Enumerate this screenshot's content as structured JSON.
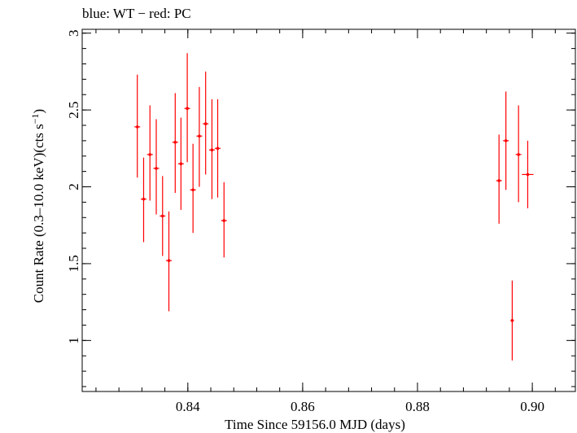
{
  "chart_data": {
    "type": "scatter",
    "title": "blue: WT − red: PC",
    "xlabel": "Time Since 59156.0 MJD (days)",
    "ylabel_main": "Count Rate (0.3–10.0 keV)(cts s",
    "ylabel_sup": "−1",
    "ylabel_close": ")",
    "xlim": [
      0.8216,
      0.9075
    ],
    "ylim": [
      0.668,
      3.025
    ],
    "xticks": [
      {
        "value": 0.84,
        "label": "0.84"
      },
      {
        "value": 0.86,
        "label": "0.86"
      },
      {
        "value": 0.88,
        "label": "0.88"
      },
      {
        "value": 0.9,
        "label": "0.90"
      }
    ],
    "yticks": [
      {
        "value": 1.0,
        "label": "1"
      },
      {
        "value": 1.5,
        "label": "1.5"
      },
      {
        "value": 2.0,
        "label": "2"
      },
      {
        "value": 2.5,
        "label": "2.5"
      },
      {
        "value": 3.0,
        "label": "3"
      }
    ],
    "x_minor_step": 0.004,
    "y_minor_step": 0.1,
    "grid": false,
    "series": [
      {
        "color": "#ff0000",
        "points": [
          {
            "x": 0.8312,
            "xerr": 0.0005,
            "y": 2.39,
            "ylo": 2.06,
            "yhi": 2.73
          },
          {
            "x": 0.8323,
            "xerr": 0.0005,
            "y": 1.92,
            "ylo": 1.64,
            "yhi": 2.19
          },
          {
            "x": 0.8334,
            "xerr": 0.0005,
            "y": 2.21,
            "ylo": 1.91,
            "yhi": 2.53
          },
          {
            "x": 0.8345,
            "xerr": 0.0005,
            "y": 2.12,
            "ylo": 1.82,
            "yhi": 2.44
          },
          {
            "x": 0.8356,
            "xerr": 0.0005,
            "y": 1.81,
            "ylo": 1.55,
            "yhi": 2.07
          },
          {
            "x": 0.8367,
            "xerr": 0.0005,
            "y": 1.52,
            "ylo": 1.19,
            "yhi": 1.84
          },
          {
            "x": 0.8378,
            "xerr": 0.0005,
            "y": 2.29,
            "ylo": 1.96,
            "yhi": 2.61
          },
          {
            "x": 0.8388,
            "xerr": 0.0005,
            "y": 2.15,
            "ylo": 1.85,
            "yhi": 2.45
          },
          {
            "x": 0.8399,
            "xerr": 0.0005,
            "y": 2.51,
            "ylo": 2.16,
            "yhi": 2.87
          },
          {
            "x": 0.8409,
            "xerr": 0.0005,
            "y": 1.98,
            "ylo": 1.7,
            "yhi": 2.28
          },
          {
            "x": 0.842,
            "xerr": 0.0005,
            "y": 2.33,
            "ylo": 2.0,
            "yhi": 2.65
          },
          {
            "x": 0.8431,
            "xerr": 0.0005,
            "y": 2.41,
            "ylo": 2.08,
            "yhi": 2.75
          },
          {
            "x": 0.8442,
            "xerr": 0.0005,
            "y": 2.24,
            "ylo": 1.92,
            "yhi": 2.57
          },
          {
            "x": 0.8452,
            "xerr": 0.0005,
            "y": 2.25,
            "ylo": 1.93,
            "yhi": 2.57
          },
          {
            "x": 0.8463,
            "xerr": 0.0005,
            "y": 1.78,
            "ylo": 1.54,
            "yhi": 2.03
          },
          {
            "x": 0.8942,
            "xerr": 0.0005,
            "y": 2.04,
            "ylo": 1.76,
            "yhi": 2.34
          },
          {
            "x": 0.8954,
            "xerr": 0.0005,
            "y": 2.3,
            "ylo": 1.98,
            "yhi": 2.62
          },
          {
            "x": 0.8965,
            "xerr": 0.0003,
            "y": 1.13,
            "ylo": 0.87,
            "yhi": 1.39
          },
          {
            "x": 0.8976,
            "xerr": 0.0005,
            "y": 2.21,
            "ylo": 1.9,
            "yhi": 2.53
          },
          {
            "x": 0.8992,
            "xerr": 0.001,
            "y": 2.08,
            "ylo": 1.86,
            "yhi": 2.3
          }
        ]
      }
    ]
  }
}
